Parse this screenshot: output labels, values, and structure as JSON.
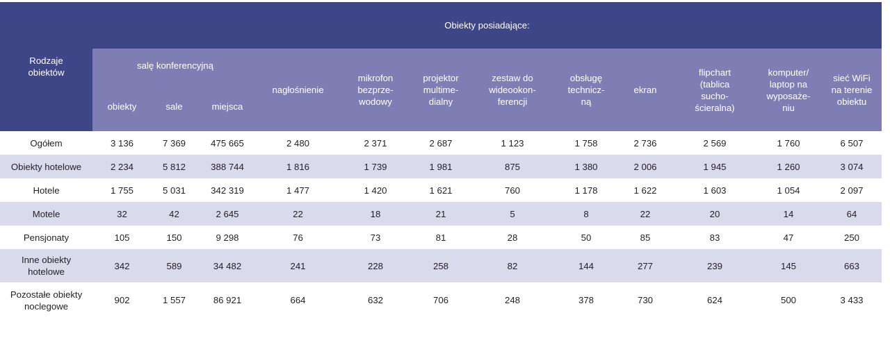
{
  "header": {
    "row_label": "Rodzaje\nobiektów",
    "group_label": "Obiekty posiadające:",
    "conf_label": "salę konferencyjną",
    "conf_sub": [
      "obiekty",
      "sale",
      "miejsca"
    ],
    "columns": [
      "nagłośnienie",
      "mikrofon\nbezprze-\nwodowy",
      "projektor\nmultime-\ndialny",
      "zestaw do\nwideookon-\nferencji",
      "obsługę\ntechnicz-\nną",
      "ekran",
      "flipchart\n(tablica\nsucho-\nścieralna)",
      "komputer/\nlaptop na\nwyposaże-\nniu",
      "sieć WiFi\nna terenie\nobiektu"
    ]
  },
  "rows": [
    {
      "name": "Ogółem",
      "values": [
        "3 136",
        "7 369",
        "475 665",
        "2 480",
        "2 371",
        "2 687",
        "1 123",
        "1 758",
        "2 736",
        "2 569",
        "1 760",
        "6 507"
      ]
    },
    {
      "name": "Obiekty hotelowe",
      "values": [
        "2 234",
        "5 812",
        "388 744",
        "1 816",
        "1 739",
        "1 981",
        "875",
        "1 380",
        "2 006",
        "1 945",
        "1 260",
        "3 074"
      ]
    },
    {
      "name": "Hotele",
      "values": [
        "1 755",
        "5 031",
        "342 319",
        "1 477",
        "1 420",
        "1 621",
        "760",
        "1 178",
        "1 622",
        "1 603",
        "1 054",
        "2 097"
      ]
    },
    {
      "name": "Motele",
      "values": [
        "32",
        "42",
        "2 645",
        "22",
        "18",
        "21",
        "5",
        "8",
        "22",
        "20",
        "14",
        "64"
      ]
    },
    {
      "name": "Pensjonaty",
      "values": [
        "105",
        "150",
        "9 298",
        "76",
        "73",
        "81",
        "28",
        "50",
        "85",
        "83",
        "47",
        "250"
      ]
    },
    {
      "name": "Inne obiekty\nhotelowe",
      "values": [
        "342",
        "589",
        "34 482",
        "241",
        "228",
        "258",
        "82",
        "144",
        "277",
        "239",
        "145",
        "663"
      ]
    },
    {
      "name": "Pozostałe obiekty\nnoclegowe",
      "values": [
        "902",
        "1 557",
        "86 921",
        "664",
        "632",
        "706",
        "248",
        "378",
        "730",
        "624",
        "500",
        "3 433"
      ]
    }
  ],
  "colors": {
    "header_dark": "#3e4688",
    "header_light": "#7e7eb4",
    "row_shade": "#d9daec"
  }
}
